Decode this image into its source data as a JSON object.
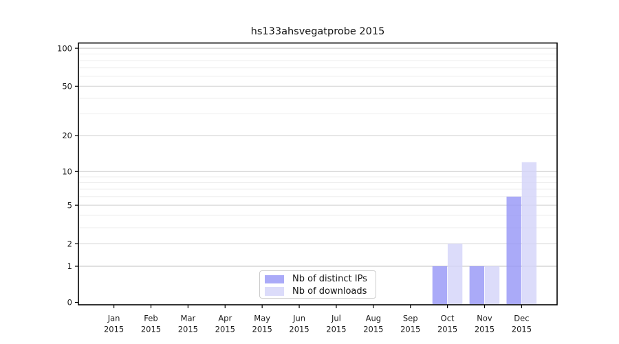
{
  "chart_data": {
    "type": "bar",
    "title": "hs133ahsvegatprobe 2015",
    "year_label": "2015",
    "categories": [
      "Jan",
      "Feb",
      "Mar",
      "Apr",
      "May",
      "Jun",
      "Jul",
      "Aug",
      "Sep",
      "Oct",
      "Nov",
      "Dec"
    ],
    "series": [
      {
        "name": "Nb of distinct IPs",
        "color": "#9595f6",
        "values": [
          0,
          0,
          0,
          0,
          0,
          0,
          0,
          0,
          0,
          1,
          1,
          6
        ]
      },
      {
        "name": "Nb of downloads",
        "color": "#d3d3f9",
        "values": [
          0,
          0,
          0,
          0,
          0,
          0,
          0,
          0,
          0,
          2,
          1,
          12
        ]
      }
    ],
    "bar_fill_opacity": 0.8,
    "yscale": "log1p",
    "ylim": [
      0,
      110
    ],
    "y_major_ticks": [
      0,
      1,
      2,
      5,
      10,
      20,
      50,
      100
    ],
    "y_minor_ticks": [
      3,
      4,
      6,
      7,
      8,
      9,
      30,
      40,
      60,
      70,
      80,
      90
    ],
    "grid": "on",
    "xlabel": "",
    "ylabel": "",
    "legend_position": "lower center"
  },
  "colors": {
    "background": "#ffffff",
    "major_grid": "#d4d4d4",
    "emphasized_grid": "#c2c2c2",
    "minor_grid": "#ededed",
    "spine": "#000000",
    "tick": "#000000",
    "text": "#1a1a1a",
    "legend_border": "#cccccc"
  }
}
